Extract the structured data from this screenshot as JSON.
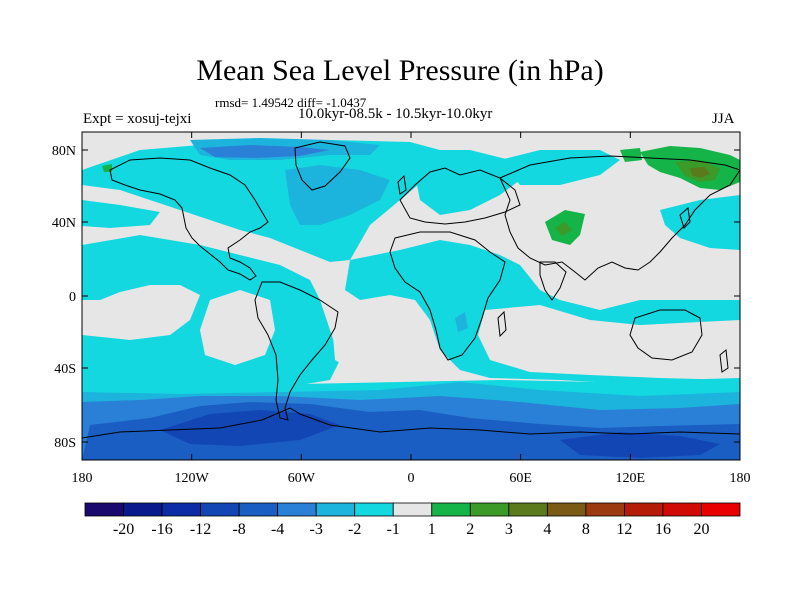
{
  "title": "Mean Sea Level Pressure (in hPa)",
  "stats": "rmsd= 1.49542 diff= -1.0437",
  "period": "10.0kyr-08.5k - 10.5kyr-10.0kyr",
  "experiment": "Expt = xosuj-tejxi",
  "season": "JJA",
  "lat_ticks": [
    "80N",
    "40N",
    "0",
    "40S",
    "80S"
  ],
  "lon_ticks": [
    "180",
    "120W",
    "60W",
    "0",
    "60E",
    "120E",
    "180"
  ],
  "colorbar": {
    "labels": [
      "-20",
      "-16",
      "-12",
      "-8",
      "-4",
      "-3",
      "-2",
      "-1",
      "1",
      "2",
      "3",
      "4",
      "8",
      "12",
      "16",
      "20"
    ],
    "colors": [
      "#1a0a6e",
      "#0a1a8c",
      "#0c2ca6",
      "#1246b4",
      "#1a5ec4",
      "#2a80d6",
      "#1cb4dc",
      "#14d8e0",
      "#e6e6e6",
      "#14b448",
      "#3c9a28",
      "#5a7a1c",
      "#7a5a14",
      "#9a3a0e",
      "#b41c08",
      "#d00a04",
      "#e80000"
    ]
  },
  "map_colors": {
    "ocean_neutral": "#e6e6e6",
    "level_m1": "#14d8e0",
    "level_m2": "#1cb4dc",
    "level_m3": "#2a80d6",
    "level_m4": "#1a5ec4",
    "level_m8": "#1246b4",
    "level_p1": "#14b448",
    "level_p2": "#3c9a28",
    "level_p3": "#5a7a1c"
  }
}
